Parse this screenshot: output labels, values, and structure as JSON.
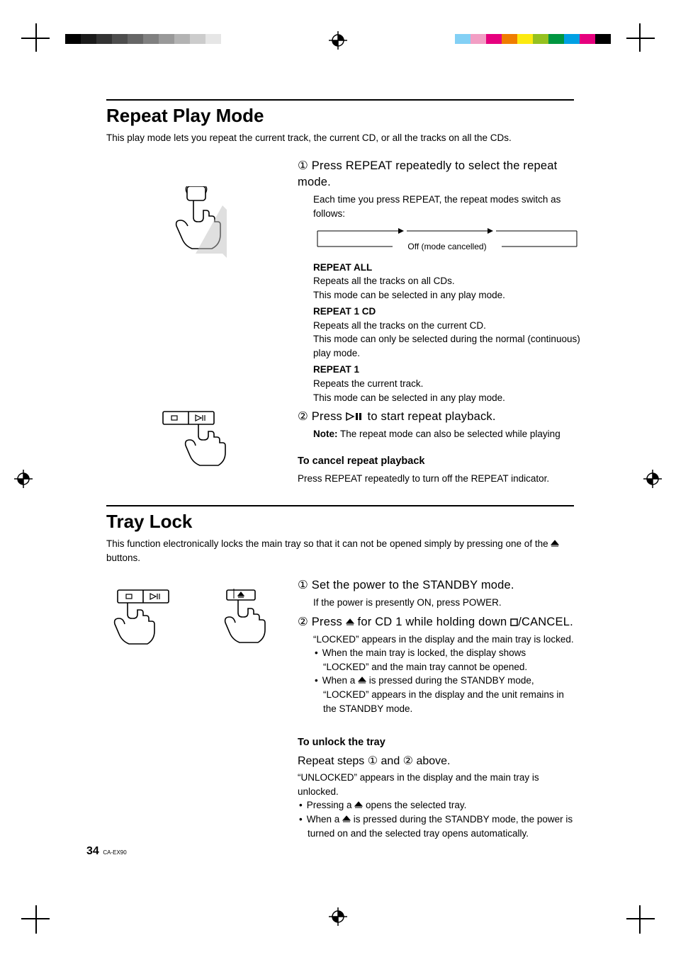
{
  "swatches_left": [
    "#000000",
    "#1a1a1a",
    "#333333",
    "#4d4d4d",
    "#666666",
    "#808080",
    "#999999",
    "#b3b3b3",
    "#cccccc",
    "#e6e6e6"
  ],
  "swatches_right": [
    "#000000",
    "#e6007e",
    "#00a0e3",
    "#009640",
    "#95c11f",
    "#fcea10",
    "#ef7d00",
    "#e6007e",
    "#f29ec4",
    "#83d0f5"
  ],
  "s1": {
    "title": "Repeat Play Mode",
    "intro": "This play mode lets you repeat the current track, the current CD, or all the tracks on all the CDs.",
    "step1": "Press REPEAT repeatedly to select the repeat mode.",
    "step1_sub": "Each time you press REPEAT, the repeat modes switch as follows:",
    "flow_off": "Off (mode cancelled)",
    "m1_head": "REPEAT ALL",
    "m1_l1": "Repeats all the tracks on all CDs.",
    "m1_l2": "This mode can be selected in any play mode.",
    "m2_head": "REPEAT 1 CD",
    "m2_l1": "Repeats all the tracks on the current CD.",
    "m2_l2": "This mode can only be selected during the normal (continuous) play mode.",
    "m3_head": "REPEAT 1",
    "m3_l1": "Repeats the current track.",
    "m3_l2": "This mode can be selected in any play mode.",
    "step2_pre": "Press ",
    "step2_post": " to start repeat playback.",
    "note_pre": "Note:",
    "note_body": " The repeat mode can also be selected while playing",
    "cancel_head": "To cancel repeat playback",
    "cancel_body": "Press REPEAT repeatedly to turn off the REPEAT indicator."
  },
  "s2": {
    "title": "Tray Lock",
    "intro_pre": "This function electronically locks the main tray so that it can not be opened simply by pressing one of the ",
    "intro_post": " buttons.",
    "step1": "Set the power to the STANDBY mode.",
    "step1_sub": "If the power is presently ON, press POWER.",
    "step2_a": "Press ",
    "step2_b": " for CD 1 while holding down ",
    "step2_c": "/CANCEL.",
    "step2_sub": "“LOCKED” appears in the display and the main tray is locked.",
    "b1": "When the main tray is locked, the display shows “LOCKED” and the main tray cannot be opened.",
    "b2_a": "When a ",
    "b2_b": " is pressed during the STANDBY mode, “LOCKED” appears in the display and the unit remains in the STANDBY mode.",
    "unlock_head": "To unlock the tray",
    "unlock_step": "Repeat steps ① and ② above.",
    "unlock_sub": "“UNLOCKED” appears in the display and the main tray is unlocked.",
    "ub1_a": "Pressing a ",
    "ub1_b": " opens the selected tray.",
    "ub2_a": "When a ",
    "ub2_b": " is pressed during the STANDBY mode, the power is turned on and the selected tray opens automatically."
  },
  "page_number": "34",
  "model": "CA-EX90"
}
